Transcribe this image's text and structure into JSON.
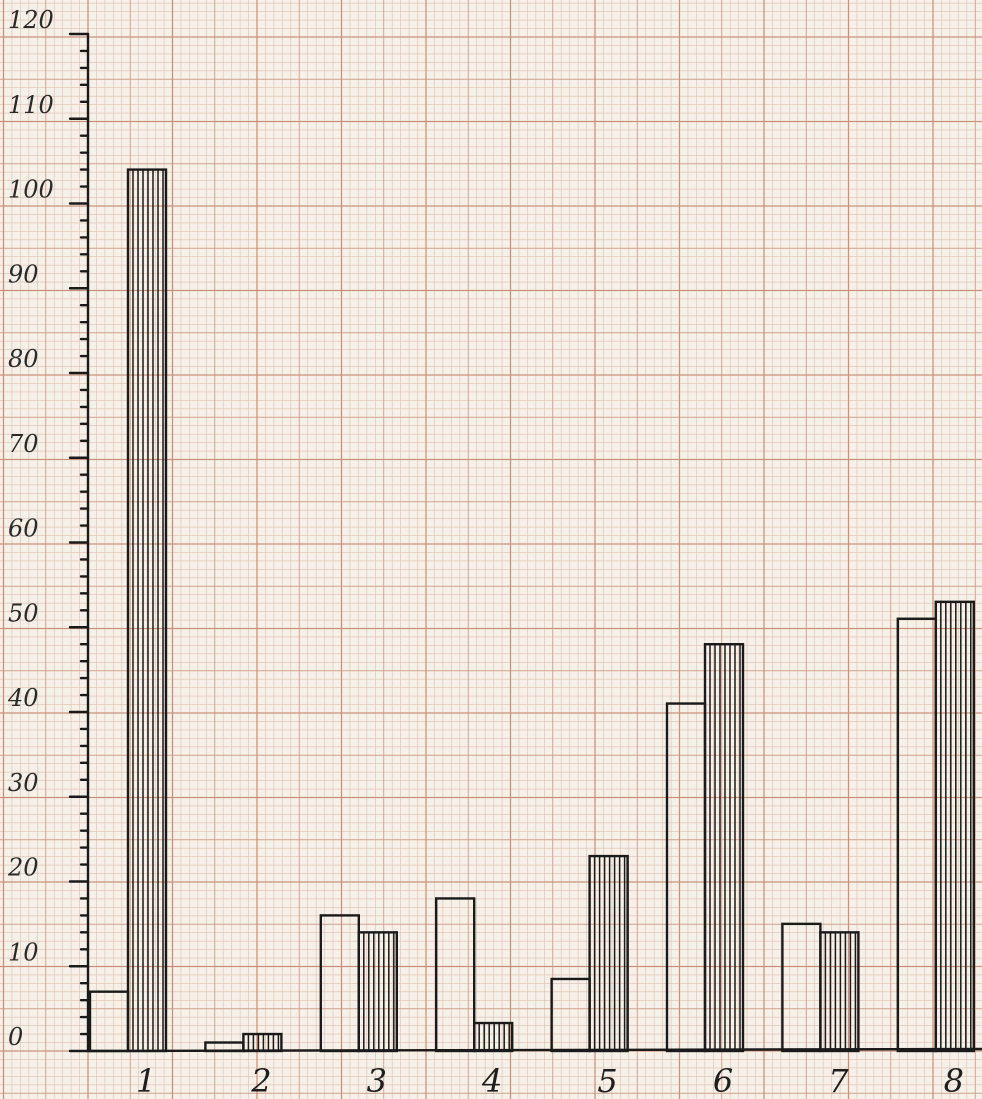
{
  "chart_data": {
    "type": "bar",
    "title": "",
    "xlabel": "",
    "ylabel": "",
    "ylim": [
      0,
      120
    ],
    "yticks": [
      "0",
      "10",
      "20",
      "30",
      "40",
      "50",
      "60",
      "70",
      "80",
      "90",
      "100",
      "110",
      "120"
    ],
    "categories": [
      "1",
      "2",
      "3",
      "4",
      "5",
      "6",
      "7",
      "8"
    ],
    "series": [
      {
        "style": "plain",
        "values": [
          7,
          1,
          16,
          18,
          8.5,
          41,
          15,
          51
        ]
      },
      {
        "style": "hatched",
        "values": [
          104,
          2,
          14,
          3.3,
          23,
          48,
          14,
          53
        ]
      }
    ],
    "grid": true,
    "legend": "none",
    "colors": {
      "paper": "#f6f1e8",
      "grid_major": "#c98b74",
      "grid_minor": "#d9b6a8",
      "ink": "#1a1a1a"
    }
  }
}
